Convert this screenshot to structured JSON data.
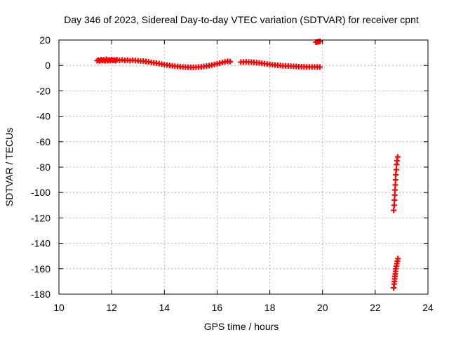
{
  "chart_data": {
    "type": "scatter",
    "title": "Day 346 of 2023, Sidereal Day-to-day VTEC variation (SDTVAR) for receiver cpnt",
    "xlabel": "GPS time / hours",
    "ylabel": "SDTVAR / TECUs",
    "xlim": [
      10,
      24
    ],
    "ylim": [
      -180,
      20
    ],
    "xticks": [
      10,
      12,
      14,
      16,
      18,
      20,
      22,
      24
    ],
    "yticks": [
      20,
      0,
      -20,
      -40,
      -60,
      -80,
      -100,
      -120,
      -140,
      -160,
      -180
    ],
    "grid": true,
    "marker": "plus",
    "color": "#ff0000",
    "series": [
      {
        "points": [
          [
            11.45,
            3.8
          ],
          [
            11.5,
            4.2
          ],
          [
            11.55,
            3.5
          ],
          [
            11.6,
            4.5
          ],
          [
            11.65,
            3.9
          ],
          [
            11.7,
            4.3
          ],
          [
            11.75,
            3.6
          ],
          [
            11.8,
            4.8
          ],
          [
            11.85,
            3.7
          ],
          [
            11.9,
            4.4
          ],
          [
            11.95,
            3.8
          ],
          [
            12.0,
            4.6
          ],
          [
            12.05,
            4.0
          ],
          [
            12.1,
            4.2
          ],
          [
            12.15,
            3.8
          ],
          [
            12.2,
            4.5
          ],
          [
            12.3,
            4.0
          ],
          [
            12.4,
            4.3
          ],
          [
            12.5,
            3.9
          ],
          [
            12.6,
            4.2
          ],
          [
            12.7,
            3.8
          ],
          [
            12.8,
            4.1
          ],
          [
            12.9,
            3.9
          ],
          [
            13.0,
            3.6
          ],
          [
            13.1,
            3.5
          ],
          [
            13.2,
            3.4
          ],
          [
            13.3,
            3.1
          ],
          [
            13.4,
            2.8
          ],
          [
            13.5,
            2.4
          ],
          [
            13.6,
            2.1
          ],
          [
            13.7,
            1.8
          ],
          [
            13.8,
            1.4
          ],
          [
            13.9,
            1.0
          ],
          [
            14.0,
            0.6
          ],
          [
            14.1,
            0.3
          ],
          [
            14.2,
            0.0
          ],
          [
            14.3,
            -0.3
          ],
          [
            14.4,
            -0.6
          ],
          [
            14.5,
            -0.8
          ],
          [
            14.6,
            -1.0
          ],
          [
            14.7,
            -1.2
          ],
          [
            14.8,
            -1.3
          ],
          [
            14.9,
            -1.4
          ],
          [
            15.0,
            -1.5
          ],
          [
            15.1,
            -1.5
          ],
          [
            15.2,
            -1.4
          ],
          [
            15.3,
            -1.2
          ],
          [
            15.4,
            -1.1
          ],
          [
            15.5,
            -0.8
          ],
          [
            15.6,
            -0.5
          ],
          [
            15.7,
            -0.2
          ],
          [
            15.8,
            0.3
          ],
          [
            15.9,
            0.8
          ],
          [
            16.0,
            1.3
          ],
          [
            16.1,
            1.8
          ],
          [
            16.2,
            2.3
          ],
          [
            16.3,
            2.8
          ],
          [
            16.4,
            3.2
          ],
          [
            16.5,
            3.0
          ],
          [
            16.9,
            2.6
          ],
          [
            17.0,
            2.7
          ],
          [
            17.1,
            2.8
          ],
          [
            17.2,
            2.7
          ],
          [
            17.3,
            2.6
          ],
          [
            17.4,
            2.4
          ],
          [
            17.5,
            2.2
          ],
          [
            17.6,
            2.0
          ],
          [
            17.7,
            1.7
          ],
          [
            17.8,
            1.4
          ],
          [
            17.9,
            1.1
          ],
          [
            18.0,
            0.8
          ],
          [
            18.1,
            0.5
          ],
          [
            18.2,
            0.3
          ],
          [
            18.3,
            0.1
          ],
          [
            18.4,
            -0.1
          ],
          [
            18.5,
            -0.3
          ],
          [
            18.6,
            -0.4
          ],
          [
            18.7,
            -0.5
          ],
          [
            18.8,
            -0.6
          ],
          [
            18.9,
            -0.7
          ],
          [
            19.0,
            -0.8
          ],
          [
            19.1,
            -0.9
          ],
          [
            19.2,
            -1.0
          ],
          [
            19.3,
            -1.0
          ],
          [
            19.4,
            -1.1
          ],
          [
            19.5,
            -1.1
          ],
          [
            19.6,
            -1.2
          ],
          [
            19.7,
            -1.2
          ],
          [
            19.8,
            -1.2
          ],
          [
            19.9,
            -1.3
          ],
          [
            19.75,
            18.3
          ],
          [
            19.8,
            18.5
          ],
          [
            19.85,
            18.7
          ],
          [
            19.9,
            18.9
          ],
          [
            22.7,
            -114
          ],
          [
            22.72,
            -110
          ],
          [
            22.73,
            -106
          ],
          [
            22.74,
            -102
          ],
          [
            22.75,
            -98
          ],
          [
            22.76,
            -94
          ],
          [
            22.77,
            -90
          ],
          [
            22.78,
            -86
          ],
          [
            22.8,
            -82
          ],
          [
            22.81,
            -78
          ],
          [
            22.83,
            -75
          ],
          [
            22.85,
            -72
          ],
          [
            22.7,
            -175
          ],
          [
            22.72,
            -172
          ],
          [
            22.73,
            -170
          ],
          [
            22.74,
            -168
          ],
          [
            22.75,
            -166
          ],
          [
            22.76,
            -164
          ],
          [
            22.77,
            -162
          ],
          [
            22.78,
            -160
          ],
          [
            22.8,
            -158
          ],
          [
            22.82,
            -156
          ],
          [
            22.84,
            -154
          ],
          [
            22.86,
            -152
          ]
        ]
      }
    ]
  }
}
